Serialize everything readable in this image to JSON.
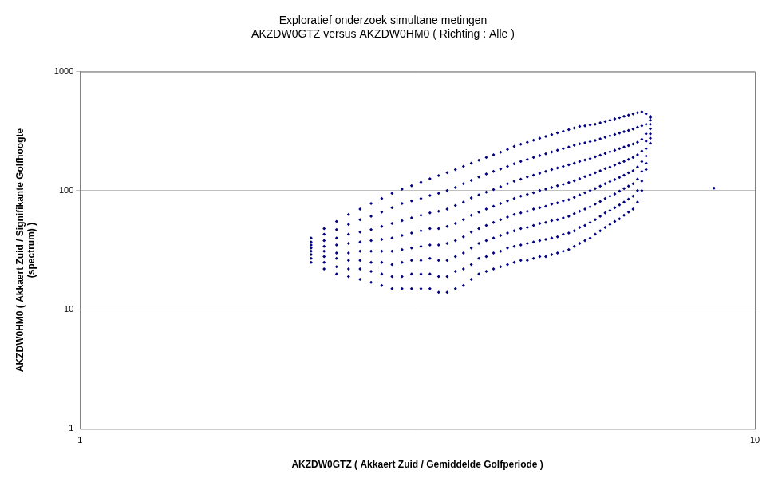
{
  "chart_data": {
    "type": "scatter",
    "title": [
      "Exploratief onderzoek simultane metingen",
      "AKZDW0GTZ versus AKZDW0HM0 ( Richting : Alle )"
    ],
    "x_label": "AKZDW0GTZ ( Akkaert Zuid / Gemiddelde Golfperiode )",
    "y_label": [
      "AKZDW0HM0 ( Akkaert Zuid / Signifikante Golfhoogte",
      "(spectrum) )"
    ],
    "log": true,
    "grid": "y",
    "color": "#000080",
    "marker": "diamond",
    "xlim": [
      1,
      10
    ],
    "xticks": [
      1,
      10
    ],
    "ylim": [
      1,
      1000
    ],
    "yticks": [
      1,
      10,
      100,
      1000
    ],
    "x": [
      2.2,
      2.2,
      2.2,
      2.2,
      2.2,
      2.2,
      2.2,
      2.2,
      2.3,
      2.3,
      2.3,
      2.3,
      2.3,
      2.3,
      2.3,
      2.3,
      2.4,
      2.4,
      2.4,
      2.4,
      2.4,
      2.4,
      2.4,
      2.4,
      2.5,
      2.5,
      2.5,
      2.5,
      2.5,
      2.5,
      2.5,
      2.5,
      2.6,
      2.6,
      2.6,
      2.6,
      2.6,
      2.6,
      2.6,
      2.6,
      2.7,
      2.7,
      2.7,
      2.7,
      2.7,
      2.7,
      2.7,
      2.7,
      2.8,
      2.8,
      2.8,
      2.8,
      2.8,
      2.8,
      2.8,
      2.8,
      2.9,
      2.9,
      2.9,
      2.9,
      2.9,
      2.9,
      2.9,
      2.9,
      3.0,
      3.0,
      3.0,
      3.0,
      3.0,
      3.0,
      3.0,
      3.0,
      3.1,
      3.1,
      3.1,
      3.1,
      3.1,
      3.1,
      3.1,
      3.1,
      3.2,
      3.2,
      3.2,
      3.2,
      3.2,
      3.2,
      3.2,
      3.2,
      3.3,
      3.3,
      3.3,
      3.3,
      3.3,
      3.3,
      3.3,
      3.3,
      3.4,
      3.4,
      3.4,
      3.4,
      3.4,
      3.4,
      3.4,
      3.4,
      3.5,
      3.5,
      3.5,
      3.5,
      3.5,
      3.5,
      3.5,
      3.5,
      3.6,
      3.6,
      3.6,
      3.6,
      3.6,
      3.6,
      3.6,
      3.6,
      3.7,
      3.7,
      3.7,
      3.7,
      3.7,
      3.7,
      3.7,
      3.7,
      3.8,
      3.8,
      3.8,
      3.8,
      3.8,
      3.8,
      3.8,
      3.8,
      3.9,
      3.9,
      3.9,
      3.9,
      3.9,
      3.9,
      3.9,
      3.9,
      4.0,
      4.0,
      4.0,
      4.0,
      4.0,
      4.0,
      4.0,
      4.0,
      4.1,
      4.1,
      4.1,
      4.1,
      4.1,
      4.1,
      4.1,
      4.1,
      4.2,
      4.2,
      4.2,
      4.2,
      4.2,
      4.2,
      4.2,
      4.2,
      4.3,
      4.3,
      4.3,
      4.3,
      4.3,
      4.3,
      4.3,
      4.3,
      4.4,
      4.4,
      4.4,
      4.4,
      4.4,
      4.4,
      4.4,
      4.4,
      4.5,
      4.5,
      4.5,
      4.5,
      4.5,
      4.5,
      4.5,
      4.5,
      4.6,
      4.6,
      4.6,
      4.6,
      4.6,
      4.6,
      4.6,
      4.6,
      4.7,
      4.7,
      4.7,
      4.7,
      4.7,
      4.7,
      4.7,
      4.7,
      4.8,
      4.8,
      4.8,
      4.8,
      4.8,
      4.8,
      4.8,
      4.8,
      4.9,
      4.9,
      4.9,
      4.9,
      4.9,
      4.9,
      4.9,
      4.9,
      5.0,
      5.0,
      5.0,
      5.0,
      5.0,
      5.0,
      5.0,
      5.0,
      5.1,
      5.1,
      5.1,
      5.1,
      5.1,
      5.1,
      5.1,
      5.1,
      5.2,
      5.2,
      5.2,
      5.2,
      5.2,
      5.2,
      5.2,
      5.2,
      5.3,
      5.3,
      5.3,
      5.3,
      5.3,
      5.3,
      5.3,
      5.3,
      5.4,
      5.4,
      5.4,
      5.4,
      5.4,
      5.4,
      5.4,
      5.4,
      5.5,
      5.5,
      5.5,
      5.5,
      5.5,
      5.5,
      5.5,
      5.5,
      5.6,
      5.6,
      5.6,
      5.6,
      5.6,
      5.6,
      5.6,
      5.6,
      5.7,
      5.7,
      5.7,
      5.7,
      5.7,
      5.7,
      5.7,
      5.7,
      5.8,
      5.8,
      5.8,
      5.8,
      5.8,
      5.8,
      5.8,
      5.8,
      5.9,
      5.9,
      5.9,
      5.9,
      5.9,
      5.9,
      5.9,
      5.9,
      6.0,
      6.0,
      6.0,
      6.0,
      6.0,
      6.0,
      6.0,
      6.0,
      6.1,
      6.1,
      6.1,
      6.1,
      6.1,
      6.1,
      6.1,
      6.1,
      6.2,
      6.2,
      6.2,
      6.2,
      6.2,
      6.2,
      6.2,
      6.2,
      6.3,
      6.3,
      6.3,
      6.3,
      6.3,
      6.3,
      6.3,
      6.3,
      6.4,
      6.4,
      6.4,
      6.4,
      6.4,
      6.4,
      6.4,
      6.4,
      6.5,
      6.5,
      6.5,
      6.5,
      6.5,
      6.5,
      6.5,
      6.5,
      6.6,
      6.6,
      6.6,
      6.6,
      6.6,
      6.6,
      6.6,
      6.6,
      6.7,
      6.7,
      6.7,
      6.7,
      6.7,
      6.7,
      6.7,
      6.7,
      6.8,
      6.8,
      6.8,
      6.8,
      6.8,
      6.8,
      6.8,
      6.8,
      6.9,
      6.9,
      6.9,
      6.9,
      6.9,
      6.9,
      6.9,
      6.9,
      7.0,
      7.0,
      7.0,
      7.0,
      7.0,
      7.0,
      7.0,
      7.0,
      8.7
    ],
    "values": [
      25,
      27,
      29,
      31,
      33,
      35,
      37,
      40,
      22,
      25,
      28,
      31,
      34,
      38,
      43,
      48,
      20,
      23,
      27,
      30,
      35,
      40,
      47,
      55,
      19,
      22,
      26,
      30,
      36,
      43,
      52,
      63,
      18,
      22,
      26,
      31,
      37,
      45,
      57,
      70,
      17,
      21,
      25,
      31,
      38,
      47,
      61,
      78,
      16,
      20,
      25,
      31,
      39,
      50,
      66,
      86,
      15,
      19,
      24,
      31,
      40,
      53,
      72,
      95,
      15,
      19,
      25,
      32,
      42,
      56,
      78,
      103,
      15,
      20,
      26,
      33,
      44,
      59,
      82,
      110,
      15,
      20,
      26,
      34,
      46,
      62,
      86,
      118,
      15,
      20,
      27,
      35,
      48,
      65,
      91,
      126,
      14,
      19,
      26,
      35,
      48,
      67,
      95,
      134,
      14,
      19,
      26,
      36,
      50,
      70,
      100,
      142,
      15,
      21,
      28,
      38,
      53,
      75,
      106,
      150,
      16,
      22,
      30,
      41,
      57,
      80,
      114,
      160,
      18,
      24,
      33,
      45,
      62,
      87,
      122,
      170,
      20,
      27,
      36,
      48,
      66,
      92,
      130,
      180,
      21,
      28,
      38,
      51,
      70,
      97,
      138,
      190,
      22,
      30,
      40,
      54,
      74,
      102,
      145,
      200,
      23,
      31,
      42,
      57,
      78,
      108,
      152,
      210,
      24,
      33,
      44,
      60,
      82,
      114,
      160,
      222,
      25,
      34,
      46,
      63,
      86,
      120,
      168,
      235,
      26,
      35,
      48,
      65,
      90,
      125,
      176,
      245,
      26,
      36,
      49,
      67,
      93,
      130,
      183,
      255,
      27,
      37,
      51,
      70,
      96,
      135,
      190,
      265,
      28,
      38,
      53,
      72,
      100,
      140,
      197,
      275,
      28,
      39,
      54,
      74,
      103,
      145,
      204,
      285,
      29,
      40,
      56,
      77,
      106,
      150,
      211,
      295,
      30,
      41,
      57,
      79,
      110,
      155,
      218,
      305,
      31,
      43,
      59,
      82,
      113,
      160,
      225,
      315,
      32,
      44,
      61,
      84,
      117,
      165,
      232,
      325,
      34,
      46,
      64,
      88,
      121,
      170,
      240,
      335,
      36,
      49,
      67,
      92,
      126,
      176,
      247,
      345,
      38,
      51,
      70,
      96,
      131,
      181,
      252,
      350,
      40,
      54,
      73,
      100,
      136,
      186,
      258,
      355,
      43,
      57,
      77,
      104,
      141,
      192,
      264,
      360,
      46,
      61,
      81,
      109,
      147,
      198,
      272,
      370,
      49,
      65,
      86,
      114,
      153,
      205,
      280,
      380,
      52,
      68,
      90,
      119,
      158,
      212,
      288,
      390,
      55,
      72,
      94,
      124,
      164,
      218,
      296,
      400,
      58,
      76,
      99,
      129,
      170,
      225,
      304,
      410,
      62,
      80,
      104,
      135,
      176,
      232,
      312,
      420,
      66,
      85,
      109,
      141,
      183,
      239,
      320,
      430,
      70,
      90,
      114,
      147,
      190,
      246,
      328,
      440,
      80,
      100,
      125,
      158,
      200,
      255,
      340,
      450,
      100,
      120,
      145,
      175,
      215,
      270,
      350,
      460,
      150,
      170,
      195,
      225,
      260,
      300,
      360,
      440,
      250,
      275,
      300,
      330,
      360,
      390,
      410,
      420,
      105
    ]
  }
}
